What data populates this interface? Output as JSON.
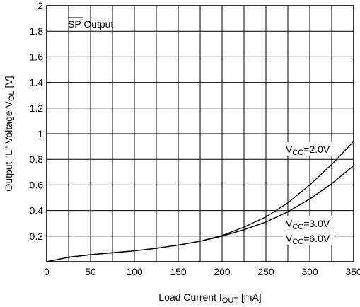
{
  "chart_data": {
    "type": "line",
    "title": "SP Output",
    "title_overline": "SP",
    "title_rest": " Output",
    "xlabel": {
      "main": "Load Current I",
      "sub": "OUT",
      "unit": " [mA]"
    },
    "ylabel": {
      "main": "Output \"L\" Voltage V",
      "sub": "OL",
      "unit": " [V]"
    },
    "xlim": [
      0,
      350
    ],
    "ylim": [
      0,
      2
    ],
    "x_major_ticks": [
      0,
      50,
      100,
      150,
      200,
      250,
      300,
      350
    ],
    "x_tick_labels": [
      "0",
      "50",
      "100",
      "150",
      "200",
      "250",
      "300",
      "350"
    ],
    "x_grid": [
      25,
      50,
      75,
      100,
      125,
      150,
      175,
      200,
      225,
      250,
      275,
      300,
      325
    ],
    "y_ticks": [
      0.2,
      0.4,
      0.6,
      0.8,
      1.0,
      1.2,
      1.4,
      1.6,
      1.8,
      2.0
    ],
    "y_tick_labels": [
      "0.2",
      "0.4",
      "0.6",
      "0.8",
      "1",
      "1.2",
      "1.4",
      "1.6",
      "1.8",
      "2"
    ],
    "grid": true,
    "series": [
      {
        "name": "VCC=2.0V",
        "label": {
          "pre": "V",
          "sub": "CC",
          "post": "=2.0V"
        },
        "x": [
          0,
          25,
          50,
          75,
          100,
          125,
          150,
          175,
          200,
          225,
          250,
          275,
          300,
          325,
          350
        ],
        "y": [
          0.0,
          0.035,
          0.055,
          0.07,
          0.085,
          0.105,
          0.13,
          0.16,
          0.205,
          0.27,
          0.35,
          0.46,
          0.6,
          0.76,
          0.94
        ]
      },
      {
        "name": "VCC=3.0V",
        "label": {
          "pre": "V",
          "sub": "CC",
          "post": "=3.0V"
        },
        "x": [
          0,
          25,
          50,
          75,
          100,
          125,
          150,
          175,
          200,
          225,
          250,
          275,
          300,
          325,
          350
        ],
        "y": [
          0.0,
          0.035,
          0.055,
          0.07,
          0.085,
          0.105,
          0.13,
          0.16,
          0.2,
          0.25,
          0.31,
          0.39,
          0.49,
          0.61,
          0.75
        ]
      },
      {
        "name": "VCC=6.0V",
        "label": {
          "pre": "V",
          "sub": "CC",
          "post": "=6.0V"
        },
        "x": [
          0,
          25,
          50,
          75,
          100,
          125,
          150,
          175,
          200,
          225,
          250,
          275,
          300,
          325,
          350
        ],
        "y": [
          0.0,
          0.035,
          0.055,
          0.07,
          0.085,
          0.105,
          0.13,
          0.16,
          0.2,
          0.25,
          0.31,
          0.39,
          0.49,
          0.61,
          0.75
        ]
      }
    ]
  }
}
